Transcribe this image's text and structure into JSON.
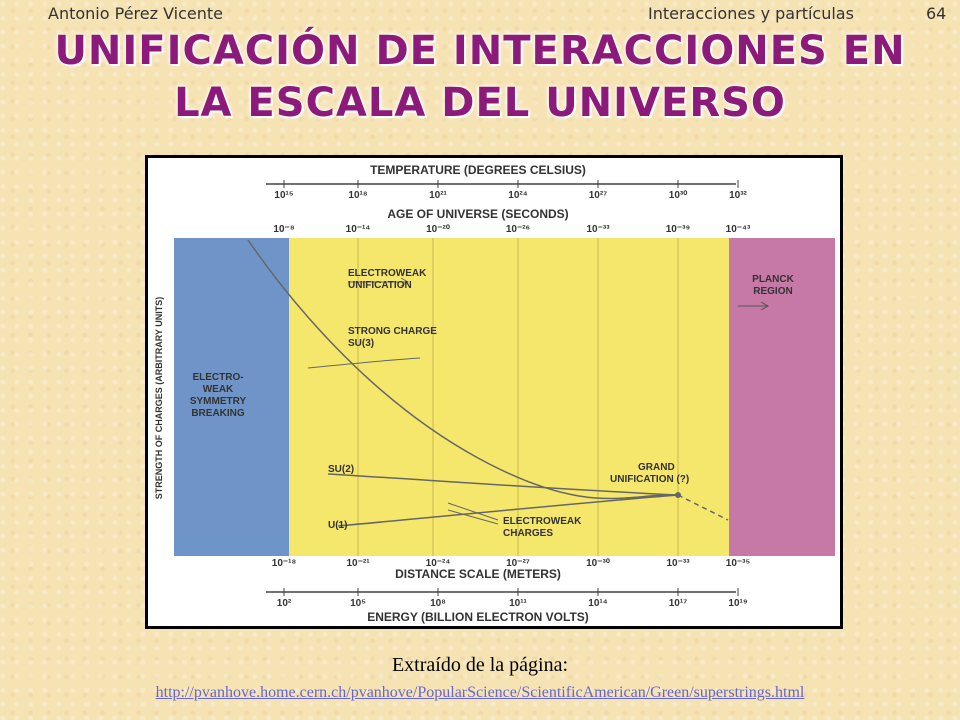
{
  "header": {
    "author": "Antonio Pérez Vicente",
    "course": "Interacciones y partículas",
    "page_number": "64"
  },
  "title": {
    "line1": "UNIFICACIÓN DE INTERACCIONES EN",
    "line2": "LA ESCALA DEL UNIVERSO"
  },
  "figure": {
    "temperature_title": "TEMPERATURE (DEGREES CELSIUS)",
    "temperature_ticks": [
      "10¹⁵",
      "10¹⁸",
      "10²¹",
      "10²⁴",
      "10²⁷",
      "10³⁰",
      "10³²"
    ],
    "age_title": "AGE OF UNIVERSE (SECONDS)",
    "age_ticks": [
      "10⁻⁸",
      "10⁻¹⁴",
      "10⁻²⁰",
      "10⁻²⁶",
      "10⁻³³",
      "10⁻³⁹",
      "10⁻⁴³"
    ],
    "y_axis_label": "STRENGTH OF CHARGES (ARBITRARY UNITS)",
    "distance_ticks": [
      "10⁻¹⁸",
      "10⁻²¹",
      "10⁻²⁴",
      "10⁻²⁷",
      "10⁻³⁰",
      "10⁻³³",
      "10⁻³⁵"
    ],
    "distance_title": "DISTANCE SCALE (METERS)",
    "energy_ticks": [
      "10²",
      "10⁵",
      "10⁸",
      "10¹¹",
      "10¹⁴",
      "10¹⁷",
      "10¹⁹"
    ],
    "energy_title": "ENERGY (BILLION ELECTRON VOLTS)",
    "region_left": [
      "ELECTRO-",
      "WEAK",
      "SYMMETRY",
      "BREAKING"
    ],
    "region_right": [
      "PLANCK",
      "REGION"
    ],
    "label_ew_unification": [
      "ELECTROWEAK",
      "UNIFICATION"
    ],
    "label_strong": [
      "STRONG CHARGE",
      "SU(3)"
    ],
    "label_su2": "SU(2)",
    "label_u1": "U(1)",
    "label_grand": [
      "GRAND",
      "UNIFICATION (?)"
    ],
    "label_ew_charges": [
      "ELECTROWEAK",
      "CHARGES"
    ],
    "colors": {
      "blue": "#6f95c8",
      "yellow": "#f5e66c",
      "pink": "#c678a6"
    }
  },
  "caption": "Extraído de la página:",
  "link": "http://pvanhove.home.cern.ch/pvanhove/PopularScience/ScientificAmerican/Green/superstrings.html"
}
